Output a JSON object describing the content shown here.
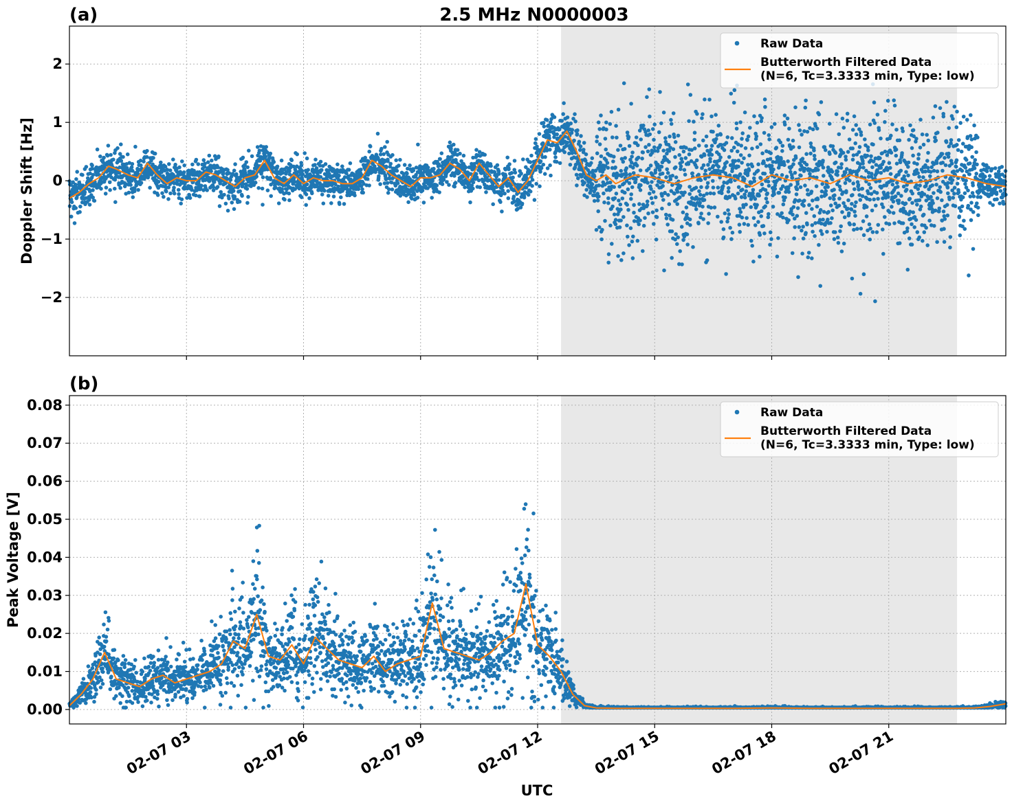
{
  "title": "2.5 MHz N0000003",
  "xlabel": "UTC",
  "colors": {
    "raw": "#1f77b4",
    "filtered": "#ff7f0e",
    "shade": "#e8e8e8"
  },
  "legend": {
    "raw_label": "Raw Data",
    "filtered_label_line1": "Butterworth Filtered Data",
    "filtered_label_line2": "(N=6, Tc=3.3333 min, Type: low)"
  },
  "x_ticks": [
    {
      "hour": 3,
      "label": "02-07 03"
    },
    {
      "hour": 6,
      "label": "02-07 06"
    },
    {
      "hour": 9,
      "label": "02-07 09"
    },
    {
      "hour": 12,
      "label": "02-07 12"
    },
    {
      "hour": 15,
      "label": "02-07 15"
    },
    {
      "hour": 18,
      "label": "02-07 18"
    },
    {
      "hour": 21,
      "label": "02-07 21"
    }
  ],
  "chart_data": [
    {
      "panel": "(a)",
      "type": "scatter",
      "ylabel": "Doppler Shift [Hz]",
      "xlim": [
        0,
        24
      ],
      "ylim": [
        -3.0,
        2.65
      ],
      "yticks": [
        {
          "v": 2,
          "label": "2"
        },
        {
          "v": 1,
          "label": "1"
        },
        {
          "v": 0,
          "label": "0"
        },
        {
          "v": -1,
          "label": "−1"
        },
        {
          "v": -2,
          "label": "−2"
        }
      ],
      "shaded_span_hours": [
        12.6,
        22.75
      ],
      "grid": true,
      "legend_position": "top-right",
      "series": [
        {
          "name": "Raw Data",
          "style": "scatter"
        },
        {
          "name": "Butterworth Filtered Data (N=6, Tc=3.3333 min, Type: low)",
          "style": "line",
          "x": [
            0,
            0.25,
            0.5,
            0.75,
            1,
            1.2,
            1.5,
            1.75,
            2,
            2.25,
            2.5,
            2.75,
            3,
            3.25,
            3.5,
            3.75,
            4,
            4.25,
            4.5,
            4.75,
            5,
            5.25,
            5.5,
            5.75,
            6,
            6.25,
            6.5,
            6.75,
            7,
            7.25,
            7.5,
            7.75,
            8,
            8.25,
            8.5,
            8.75,
            9,
            9.25,
            9.5,
            9.75,
            10,
            10.25,
            10.5,
            10.75,
            11,
            11.25,
            11.5,
            11.75,
            12,
            12.25,
            12.5,
            12.75,
            13,
            13.25,
            13.5,
            13.75,
            14,
            14.5,
            15,
            15.5,
            16,
            16.5,
            17,
            17.5,
            18,
            18.5,
            19,
            19.5,
            20,
            20.5,
            21,
            21.5,
            22,
            22.5,
            23,
            23.5,
            24
          ],
          "y": [
            -0.3,
            -0.2,
            -0.05,
            0.05,
            0.25,
            0.2,
            0.1,
            0.05,
            0.3,
            0.1,
            -0.05,
            0.05,
            0.0,
            0.0,
            0.15,
            0.1,
            0.0,
            -0.1,
            0.05,
            0.1,
            0.35,
            0.05,
            -0.05,
            0.1,
            -0.05,
            0.05,
            0.0,
            0.0,
            -0.05,
            -0.05,
            0.05,
            0.35,
            0.25,
            0.1,
            0.0,
            -0.1,
            0.05,
            0.05,
            0.1,
            0.3,
            0.2,
            0.0,
            0.3,
            0.1,
            -0.1,
            0.05,
            -0.2,
            0.0,
            0.35,
            0.7,
            0.65,
            0.85,
            0.5,
            0.1,
            0.0,
            0.1,
            -0.05,
            0.1,
            0.05,
            -0.05,
            0.05,
            0.1,
            0.05,
            -0.1,
            0.1,
            0.0,
            0.05,
            -0.05,
            0.1,
            0.0,
            0.05,
            -0.05,
            0.0,
            0.1,
            0.05,
            -0.05,
            -0.1
          ]
        }
      ]
    },
    {
      "panel": "(b)",
      "type": "scatter",
      "ylabel": "Peak Voltage [V]",
      "xlim": [
        0,
        24
      ],
      "ylim": [
        -0.0038,
        0.0825
      ],
      "yticks": [
        {
          "v": 0.08,
          "label": "0.08"
        },
        {
          "v": 0.07,
          "label": "0.07"
        },
        {
          "v": 0.06,
          "label": "0.06"
        },
        {
          "v": 0.05,
          "label": "0.05"
        },
        {
          "v": 0.04,
          "label": "0.04"
        },
        {
          "v": 0.03,
          "label": "0.03"
        },
        {
          "v": 0.02,
          "label": "0.02"
        },
        {
          "v": 0.01,
          "label": "0.01"
        },
        {
          "v": 0.0,
          "label": "0.00"
        }
      ],
      "shaded_span_hours": [
        12.6,
        22.75
      ],
      "grid": true,
      "legend_position": "top-right",
      "series": [
        {
          "name": "Raw Data",
          "style": "scatter"
        },
        {
          "name": "Butterworth Filtered Data (N=6, Tc=3.3333 min, Type: low)",
          "style": "line",
          "x": [
            0,
            0.3,
            0.6,
            0.9,
            1.2,
            1.5,
            1.8,
            2.1,
            2.4,
            2.7,
            3.0,
            3.3,
            3.6,
            3.9,
            4.2,
            4.5,
            4.8,
            5.1,
            5.4,
            5.7,
            6.0,
            6.3,
            6.6,
            6.9,
            7.2,
            7.5,
            7.8,
            8.1,
            8.4,
            8.7,
            9.0,
            9.3,
            9.6,
            9.9,
            10.2,
            10.5,
            10.8,
            11.1,
            11.4,
            11.7,
            12.0,
            12.3,
            12.6,
            12.9,
            13.2,
            13.5,
            14,
            15,
            16,
            17,
            18,
            19,
            20,
            21,
            22,
            22.75,
            23.2,
            23.6,
            24
          ],
          "y": [
            0.001,
            0.004,
            0.008,
            0.015,
            0.008,
            0.007,
            0.006,
            0.008,
            0.009,
            0.007,
            0.008,
            0.009,
            0.01,
            0.012,
            0.018,
            0.016,
            0.025,
            0.014,
            0.013,
            0.017,
            0.012,
            0.019,
            0.016,
            0.013,
            0.012,
            0.011,
            0.014,
            0.01,
            0.012,
            0.013,
            0.014,
            0.028,
            0.016,
            0.015,
            0.014,
            0.013,
            0.015,
            0.018,
            0.02,
            0.033,
            0.017,
            0.014,
            0.01,
            0.004,
            0.001,
            0.0004,
            0.0003,
            0.0003,
            0.0003,
            0.0003,
            0.0004,
            0.0003,
            0.0003,
            0.0003,
            0.0003,
            0.0003,
            0.0004,
            0.0008,
            0.0015
          ]
        }
      ]
    }
  ]
}
